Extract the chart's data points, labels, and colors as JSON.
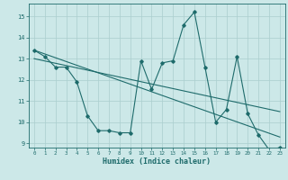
{
  "title": "",
  "xlabel": "Humidex (Indice chaleur)",
  "bg_color": "#cce8e8",
  "grid_color": "#aacece",
  "line_color": "#1e6b6b",
  "xlim": [
    -0.5,
    23.5
  ],
  "ylim": [
    8.8,
    15.6
  ],
  "yticks": [
    9,
    10,
    11,
    12,
    13,
    14,
    15
  ],
  "xticks": [
    0,
    1,
    2,
    3,
    4,
    5,
    6,
    7,
    8,
    9,
    10,
    11,
    12,
    13,
    14,
    15,
    16,
    17,
    18,
    19,
    20,
    21,
    22,
    23
  ],
  "series1_x": [
    0,
    1,
    2,
    3,
    4,
    5,
    6,
    7,
    8,
    9,
    10,
    11,
    12,
    13,
    14,
    15,
    16,
    17,
    18,
    19,
    20,
    21,
    22,
    23
  ],
  "series1_y": [
    13.4,
    13.1,
    12.6,
    12.6,
    11.9,
    10.3,
    9.6,
    9.6,
    9.5,
    9.5,
    12.9,
    11.55,
    12.8,
    12.9,
    14.6,
    15.2,
    12.6,
    10.0,
    10.6,
    13.1,
    10.4,
    9.4,
    8.7,
    8.8
  ],
  "series2_x": [
    0,
    23
  ],
  "series2_y": [
    13.4,
    9.3
  ],
  "series3_x": [
    0,
    23
  ],
  "series3_y": [
    13.0,
    10.5
  ]
}
